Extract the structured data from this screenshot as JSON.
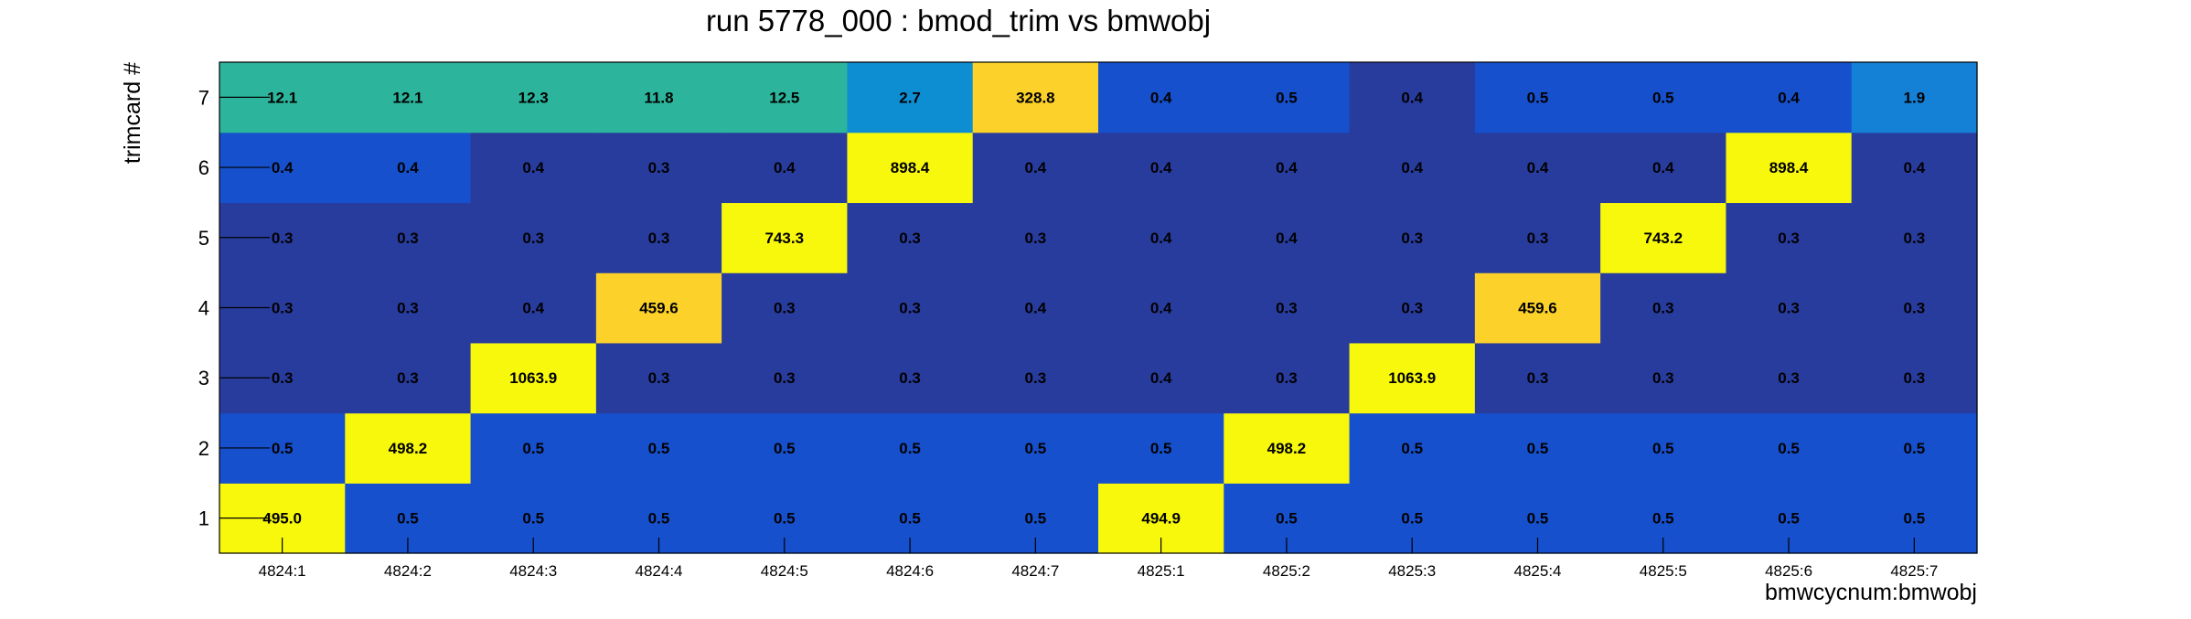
{
  "chart_data": {
    "type": "heatmap",
    "title": "run 5778_000 : bmod_trim vs bmwobj",
    "xlabel": "bmwcycnum:bmwobj",
    "ylabel": "trimcard #",
    "x_categories": [
      "4824:1",
      "4824:2",
      "4824:3",
      "4824:4",
      "4824:5",
      "4824:6",
      "4824:7",
      "4825:1",
      "4825:2",
      "4825:3",
      "4825:4",
      "4825:5",
      "4825:6",
      "4825:7"
    ],
    "y_categories": [
      "1",
      "2",
      "3",
      "4",
      "5",
      "6",
      "7"
    ],
    "values": [
      [
        "495.0",
        "0.5",
        "0.5",
        "0.5",
        "0.5",
        "0.5",
        "0.5",
        "494.9",
        "0.5",
        "0.5",
        "0.5",
        "0.5",
        "0.5",
        "0.5"
      ],
      [
        "0.5",
        "498.2",
        "0.5",
        "0.5",
        "0.5",
        "0.5",
        "0.5",
        "0.5",
        "498.2",
        "0.5",
        "0.5",
        "0.5",
        "0.5",
        "0.5"
      ],
      [
        "0.3",
        "0.3",
        "1063.9",
        "0.3",
        "0.3",
        "0.3",
        "0.3",
        "0.4",
        "0.3",
        "1063.9",
        "0.3",
        "0.3",
        "0.3",
        "0.3"
      ],
      [
        "0.3",
        "0.3",
        "0.4",
        "459.6",
        "0.3",
        "0.3",
        "0.4",
        "0.4",
        "0.3",
        "0.3",
        "459.6",
        "0.3",
        "0.3",
        "0.3"
      ],
      [
        "0.3",
        "0.3",
        "0.3",
        "0.3",
        "743.3",
        "0.3",
        "0.3",
        "0.4",
        "0.4",
        "0.3",
        "0.3",
        "743.2",
        "0.3",
        "0.3"
      ],
      [
        "0.4",
        "0.4",
        "0.4",
        "0.3",
        "0.4",
        "898.4",
        "0.4",
        "0.4",
        "0.4",
        "0.4",
        "0.4",
        "0.4",
        "898.4",
        "0.4"
      ],
      [
        "12.1",
        "12.1",
        "12.3",
        "11.8",
        "12.5",
        "2.7",
        "328.8",
        "0.4",
        "0.5",
        "0.4",
        "0.5",
        "0.5",
        "0.4",
        "1.9"
      ]
    ],
    "colors": [
      [
        "#f8f80d",
        "#1650cc",
        "#1650cc",
        "#1650cc",
        "#1650cc",
        "#1650cc",
        "#1650cc",
        "#f8f80d",
        "#1650cc",
        "#1650cc",
        "#1650cc",
        "#1650cc",
        "#1650cc",
        "#1650cc"
      ],
      [
        "#1650cc",
        "#f8f80d",
        "#1650cc",
        "#1650cc",
        "#1650cc",
        "#1650cc",
        "#1650cc",
        "#1650cc",
        "#f8f80d",
        "#1650cc",
        "#1650cc",
        "#1650cc",
        "#1650cc",
        "#1650cc"
      ],
      [
        "#283c9e",
        "#283c9e",
        "#f8f80d",
        "#283c9e",
        "#283c9e",
        "#283c9e",
        "#283c9e",
        "#283c9e",
        "#283c9e",
        "#f8f80d",
        "#283c9e",
        "#283c9e",
        "#283c9e",
        "#283c9e"
      ],
      [
        "#283c9e",
        "#283c9e",
        "#283c9e",
        "#fbd12a",
        "#283c9e",
        "#283c9e",
        "#283c9e",
        "#283c9e",
        "#283c9e",
        "#283c9e",
        "#fbd12a",
        "#283c9e",
        "#283c9e",
        "#283c9e"
      ],
      [
        "#283c9e",
        "#283c9e",
        "#283c9e",
        "#283c9e",
        "#f8f80d",
        "#283c9e",
        "#283c9e",
        "#283c9e",
        "#283c9e",
        "#283c9e",
        "#283c9e",
        "#f8f80d",
        "#283c9e",
        "#283c9e"
      ],
      [
        "#1650cc",
        "#1650cc",
        "#283c9e",
        "#283c9e",
        "#283c9e",
        "#f8f80d",
        "#283c9e",
        "#283c9e",
        "#283c9e",
        "#283c9e",
        "#283c9e",
        "#283c9e",
        "#f8f80d",
        "#283c9e"
      ],
      [
        "#2cb59c",
        "#2cb59c",
        "#2cb59c",
        "#2cb59c",
        "#2cb59c",
        "#0e8ed2",
        "#fbd12a",
        "#1650cc",
        "#1650cc",
        "#283c9e",
        "#1650cc",
        "#1650cc",
        "#1650cc",
        "#1481d6"
      ]
    ],
    "grid": false,
    "legend": "none"
  }
}
